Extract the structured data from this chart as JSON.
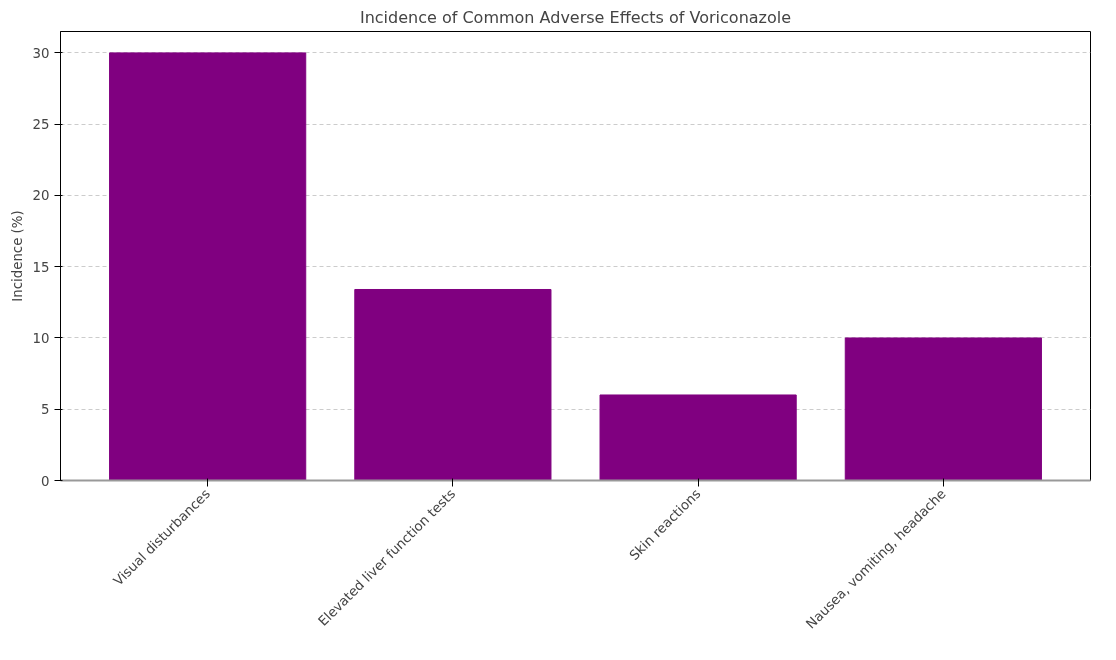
{
  "chart_data": {
    "type": "bar",
    "title": "Incidence of Common Adverse Effects of Voriconazole",
    "ylabel": "Incidence (%)",
    "categories": [
      "Visual disturbances",
      "Elevated liver function tests",
      "Skin reactions",
      "Nausea, vomiting, headache"
    ],
    "values": [
      30,
      13.4,
      6,
      10
    ],
    "color": "#800080",
    "ylim": [
      0,
      31.5
    ],
    "yticks": [
      0,
      5,
      10,
      15,
      20,
      25,
      30
    ],
    "grid": "y"
  }
}
